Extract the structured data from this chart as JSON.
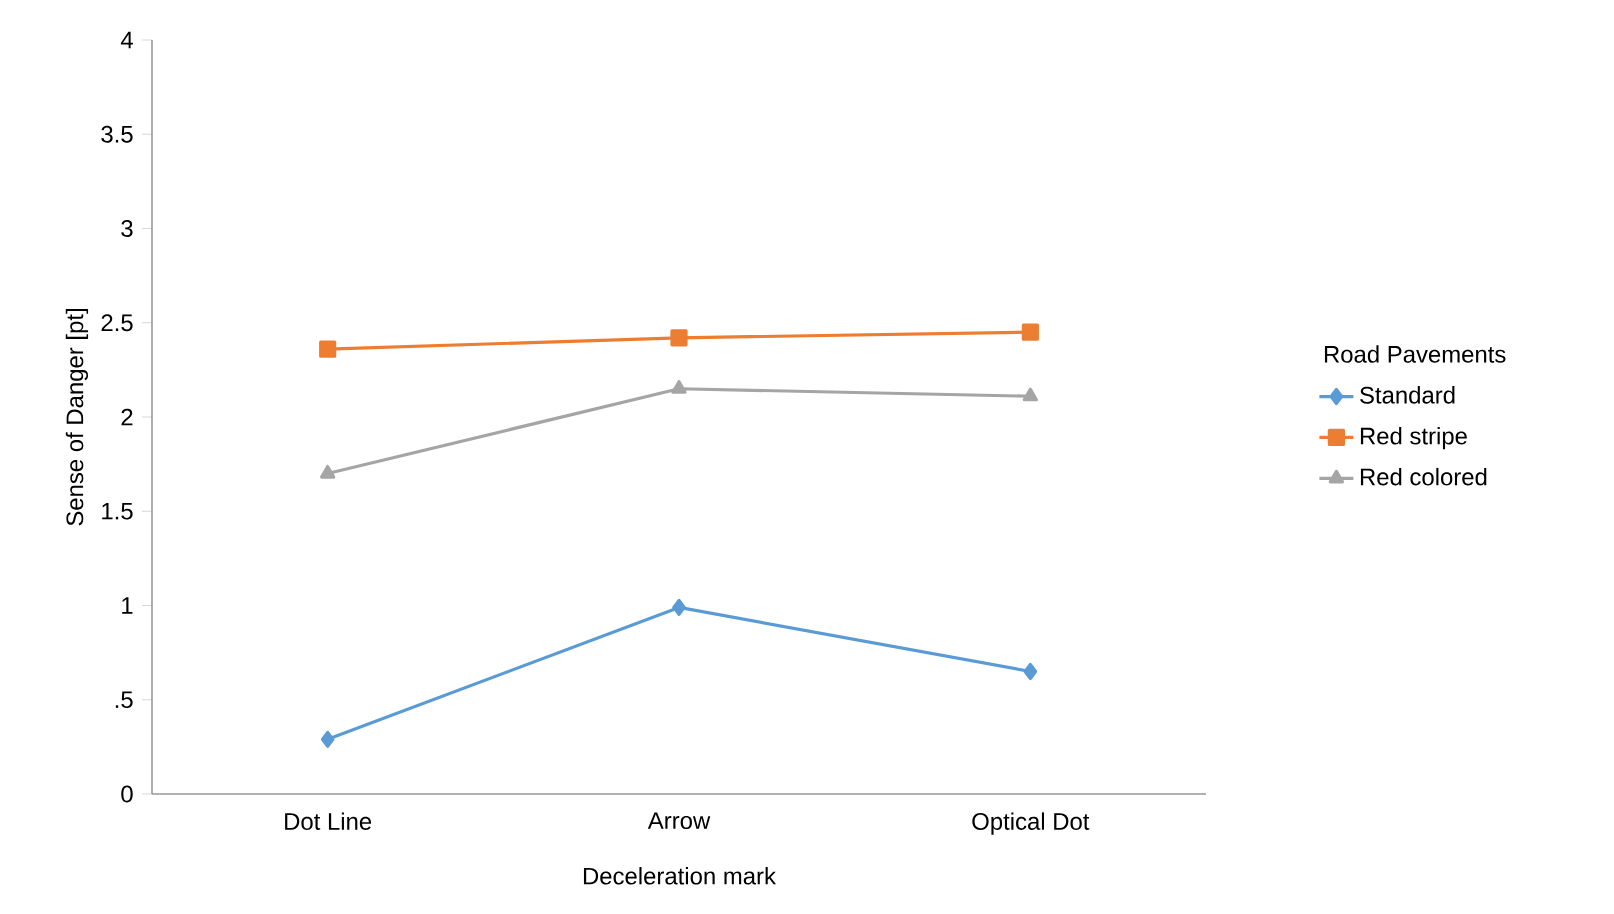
{
  "chart_data": {
    "type": "line",
    "xlabel": "Deceleration mark",
    "ylabel": "Sense of Danger  [pt]",
    "legend_title": "Road Pavements",
    "categories": [
      "Dot Line",
      "Arrow",
      "Optical Dot"
    ],
    "series": [
      {
        "name": "Standard",
        "color": "#5b9bd5",
        "marker": "diamond",
        "values": [
          0.29,
          0.99,
          0.65
        ]
      },
      {
        "name": "Red stripe",
        "color": "#ed7d31",
        "marker": "square",
        "values": [
          2.36,
          2.42,
          2.45
        ]
      },
      {
        "name": "Red colored",
        "color": "#a5a5a5",
        "marker": "triangle",
        "values": [
          1.7,
          2.15,
          2.11
        ]
      }
    ],
    "ylim": [
      0,
      4
    ],
    "yticks": [
      0,
      {
        "value": 0.5,
        "label": ".5"
      },
      1,
      1.5,
      2,
      2.5,
      3,
      3.5,
      4
    ],
    "grid": false,
    "legend": "right",
    "line_style": "solid"
  }
}
